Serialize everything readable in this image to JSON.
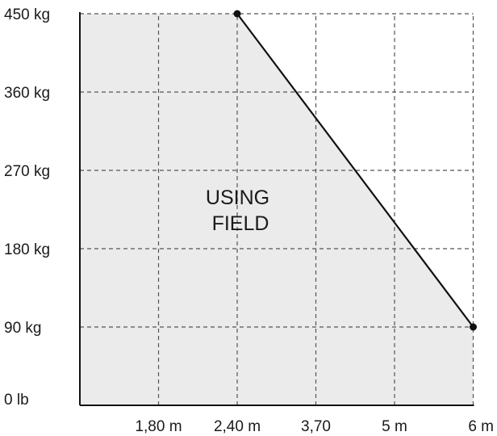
{
  "chart_data": {
    "type": "area",
    "title": "",
    "xlabel": "",
    "ylabel": "",
    "grid": true,
    "x_tick_labels": [
      "1,80 m",
      "2,40 m",
      "3,70",
      "5 m",
      "6 m"
    ],
    "y_tick_labels": [
      "0 lb",
      "90 kg",
      "180 kg",
      "270 kg",
      "360 kg",
      "450 kg"
    ],
    "y_ticks": [
      0,
      90,
      180,
      270,
      360,
      450
    ],
    "ylim": [
      0,
      450
    ],
    "x_positions": [
      1,
      2,
      3,
      4,
      5
    ],
    "xlim": [
      0,
      5
    ],
    "series": [
      {
        "points": [
          {
            "x": 2,
            "x_label": "2,40 m",
            "y": 450
          },
          {
            "x": 5,
            "x_label": "6 m",
            "y": 90
          }
        ]
      }
    ],
    "annotation": [
      "USING",
      "FIELD"
    ],
    "colors": {
      "fill": "#ebebeb",
      "line": "#111111",
      "grid": "#555555",
      "axis": "#111111"
    }
  }
}
